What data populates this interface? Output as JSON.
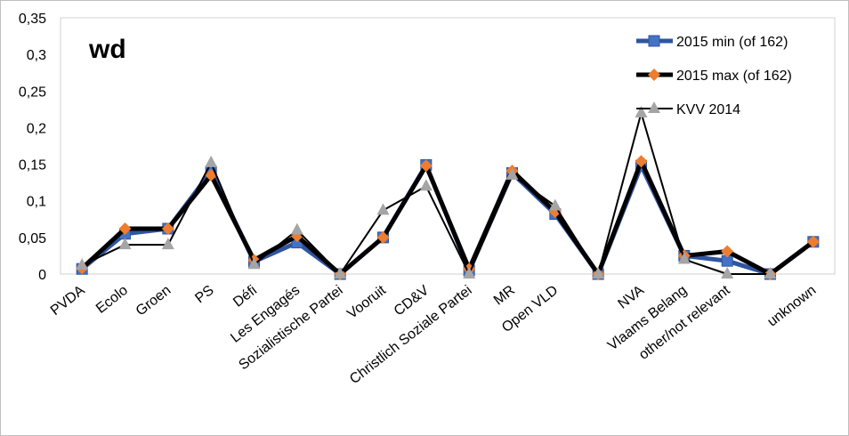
{
  "chart_data": {
    "type": "line",
    "title": "wd",
    "xlabel": "",
    "ylabel": "",
    "ylim": [
      0,
      0.35
    ],
    "yticks": [
      "0",
      "0,05",
      "0,1",
      "0,15",
      "0,2",
      "0,25",
      "0,3",
      "0,35"
    ],
    "grid": false,
    "legend_position": "top-right",
    "categories": [
      "PVDA",
      "Ecolo",
      "Groen",
      "PS",
      "Défi",
      "Les Engagés",
      "Sozialistische Partei",
      "Vooruit",
      "CD&V",
      "Christlich Soziale Partei",
      "MR",
      "Open VLD",
      "",
      "NVA",
      "Vlaams Belang",
      "other/not relevant",
      "",
      "unknown"
    ],
    "series": [
      {
        "name": "2015 min (of 162)",
        "color": "#4472C4",
        "line_color": "#2F55A0",
        "marker": "square",
        "values": [
          0.007,
          0.055,
          0.062,
          0.14,
          0.017,
          0.043,
          0,
          0.05,
          0.149,
          0.005,
          0.138,
          0.082,
          0,
          0.148,
          0.025,
          0.018,
          0,
          0.044
        ]
      },
      {
        "name": "2015 max (of 162)",
        "color": "#ED7D31",
        "line_color": "#000000",
        "marker": "diamond",
        "values": [
          0.008,
          0.062,
          0.062,
          0.135,
          0.019,
          0.052,
          0,
          0.05,
          0.148,
          0.007,
          0.141,
          0.085,
          0,
          0.154,
          0.025,
          0.031,
          0,
          0.044
        ]
      },
      {
        "name": "KVV 2014",
        "color": "#A5A5A5",
        "line_color": "#000000",
        "marker": "triangle",
        "values": [
          0.012,
          0.04,
          0.04,
          0.152,
          0.013,
          0.06,
          0,
          0.087,
          0.12,
          0,
          0.135,
          0.093,
          0,
          0.22,
          0.02,
          0,
          0,
          null
        ]
      }
    ]
  }
}
